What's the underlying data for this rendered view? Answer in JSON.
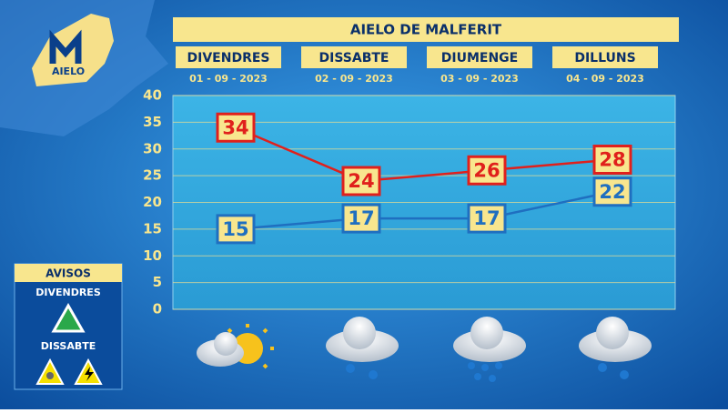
{
  "chart_data": {
    "type": "line",
    "title": "AIELO DE MALFERIT",
    "categories": [
      "DIVENDRES",
      "DISSABTE",
      "DIUMENGE",
      "DILLUNS"
    ],
    "dates": [
      "01 - 09 - 2023",
      "02 - 09 - 2023",
      "03 - 09 - 2023",
      "04 - 09 - 2023"
    ],
    "series": [
      {
        "name": "Max",
        "color": "#e0201c",
        "values": [
          34,
          24,
          26,
          28
        ]
      },
      {
        "name": "Min",
        "color": "#1f6fc0",
        "values": [
          15,
          17,
          17,
          22
        ]
      }
    ],
    "ylim": [
      0,
      40
    ],
    "yticks": [
      0,
      5,
      10,
      15,
      20,
      25,
      30,
      35,
      40
    ],
    "grid": true
  },
  "logo": "AIELO",
  "warnings": {
    "title": "AVISOS",
    "days": [
      "DIVENDRES",
      "DISSABTE"
    ]
  }
}
